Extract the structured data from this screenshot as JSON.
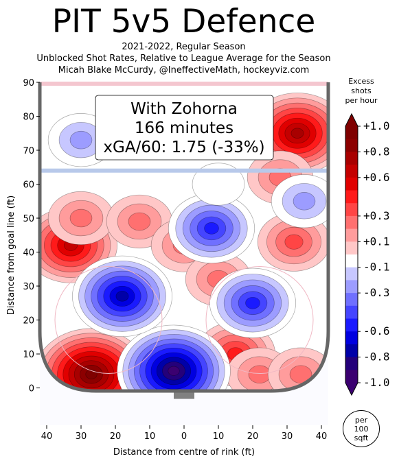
{
  "title": "PIT 5v5 Defence",
  "subtitle_lines": [
    "2021-2022, Regular Season",
    "Unblocked Shot Rates, Relative to League Average for the Season",
    "Micah Blake McCurdy, @IneffectiveMath, hockeyviz.com"
  ],
  "annotation": {
    "line1": "With Zohorna",
    "line2": "166 minutes",
    "line3": "xGA/60: 1.75 (-33%)"
  },
  "colorbar": {
    "title_lines": [
      "Excess",
      "shots",
      "per hour"
    ],
    "ticks": [
      "+1.0",
      "+0.8",
      "+0.6",
      "+0.3",
      "+0.1",
      "-0.1",
      "-0.3",
      "-0.6",
      "-0.8",
      "-1.0"
    ],
    "tick_values": [
      1.0,
      0.8,
      0.6,
      0.3,
      0.1,
      -0.1,
      -0.3,
      -0.6,
      -0.8,
      -1.0
    ],
    "colors": [
      "#7f0000",
      "#8c0000",
      "#a80000",
      "#c40000",
      "#e00000",
      "#ff1a1a",
      "#ff4545",
      "#ff7070",
      "#ff9c9c",
      "#ffc7c7",
      "#ffffff",
      "#c7c7ff",
      "#9c9cff",
      "#7070ff",
      "#4545ff",
      "#1a1aff",
      "#0000e0",
      "#0000a8",
      "#24007a",
      "#3b0070"
    ]
  },
  "unit_badge_lines": [
    "per",
    "100",
    "sqft"
  ],
  "chart_data": {
    "type": "heatmap",
    "title": "PIT 5v5 Defence",
    "xlabel": "Distance from centre of rink (ft)",
    "ylabel": "Distance from goal line (ft)",
    "xlim": [
      -42,
      42
    ],
    "ylim": [
      -11,
      90
    ],
    "xticks": [
      -40,
      -30,
      -20,
      -10,
      0,
      10,
      20,
      30,
      40
    ],
    "xtick_labels": [
      "40",
      "30",
      "20",
      "10",
      "0",
      "10",
      "20",
      "30",
      "40"
    ],
    "yticks": [
      0,
      10,
      20,
      30,
      40,
      50,
      60,
      70,
      80,
      90
    ],
    "ytick_labels": [
      "0",
      "10",
      "20",
      "30",
      "40",
      "50",
      "60",
      "70",
      "80",
      "90"
    ],
    "value_range": [
      -1.0,
      1.0
    ],
    "regions": [
      {
        "x": -27,
        "y": 4,
        "value": 1.0
      },
      {
        "x": -33,
        "y": 42,
        "value": 0.7
      },
      {
        "x": -30,
        "y": 50,
        "value": 0.3
      },
      {
        "x": -13,
        "y": 49,
        "value": 0.3
      },
      {
        "x": 0,
        "y": 42,
        "value": 0.3
      },
      {
        "x": 33,
        "y": 75,
        "value": 0.8
      },
      {
        "x": 28,
        "y": 62,
        "value": 0.3
      },
      {
        "x": 32,
        "y": 43,
        "value": 0.4
      },
      {
        "x": 10,
        "y": 32,
        "value": 0.3
      },
      {
        "x": 15,
        "y": 10,
        "value": 0.5
      },
      {
        "x": 22,
        "y": 4,
        "value": 0.3
      },
      {
        "x": 34,
        "y": 4,
        "value": 0.3
      },
      {
        "x": -3,
        "y": 5,
        "value": -1.0
      },
      {
        "x": -18,
        "y": 27,
        "value": -0.8
      },
      {
        "x": 20,
        "y": 25,
        "value": -0.6
      },
      {
        "x": 8,
        "y": 47,
        "value": -0.6
      },
      {
        "x": -30,
        "y": 73,
        "value": -0.3
      },
      {
        "x": 35,
        "y": 55,
        "value": -0.3
      },
      {
        "x": 10,
        "y": 60,
        "value": -0.1
      }
    ]
  }
}
